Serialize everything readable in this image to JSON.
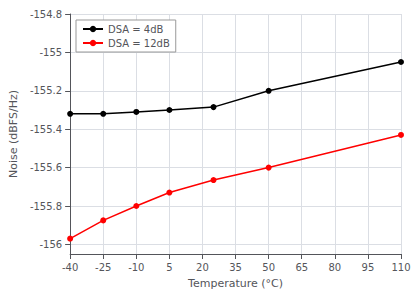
{
  "chart_data": {
    "type": "line",
    "x": [
      -40,
      -25,
      -10,
      5,
      25,
      50,
      110
    ],
    "series": [
      {
        "name": "DSA = 4dB",
        "color": "#000000",
        "values": [
          -155.32,
          -155.32,
          -155.31,
          -155.3,
          -155.285,
          -155.2,
          -155.05
        ]
      },
      {
        "name": "DSA = 12dB",
        "color": "#ff0000",
        "values": [
          -155.97,
          -155.875,
          -155.8,
          -155.73,
          -155.665,
          -155.6,
          -155.43
        ]
      }
    ],
    "xlabel": "Temperature (°C)",
    "ylabel": "Noise (dBFS/Hz)",
    "xlim": [
      -40,
      110
    ],
    "ylim": [
      -156.05,
      -154.8
    ],
    "xticks": [
      -40,
      -25,
      -10,
      5,
      20,
      35,
      50,
      65,
      80,
      95,
      110
    ],
    "yticks": [
      -156,
      -155.8,
      -155.6,
      -155.4,
      -155.2,
      -155,
      -154.8
    ],
    "grid": true,
    "legend": "upper left",
    "marker": "circle",
    "line_style": "solid"
  }
}
